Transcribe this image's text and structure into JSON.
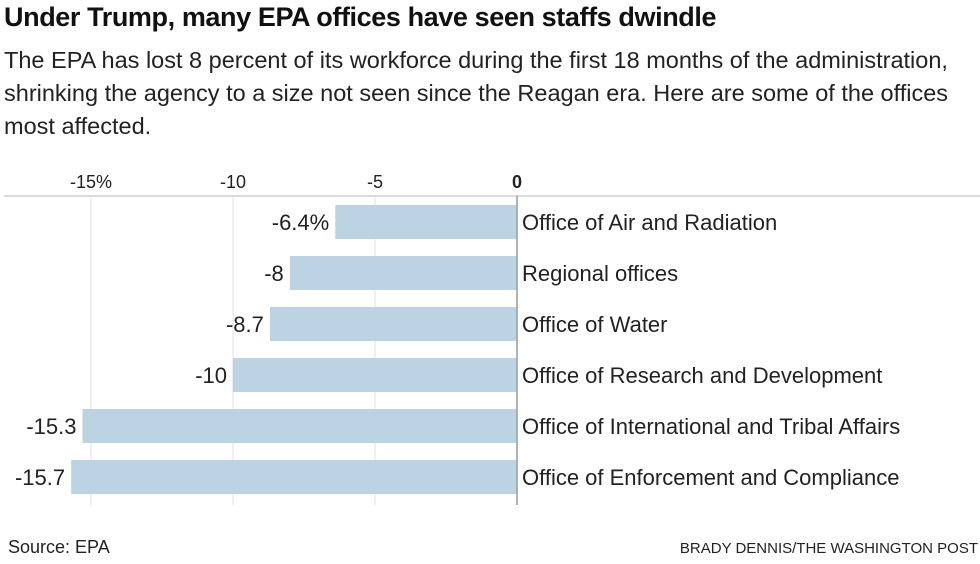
{
  "title": "Under Trump, many EPA offices have seen staffs dwindle",
  "subtitle": "The EPA has lost 8 percent of its workforce during the first 18 months of the administration, shrinking the agency to a size not seen since the Reagan era. Here are some of the offices most affected.",
  "source": "Source: EPA",
  "credit": "BRADY DENNIS/THE WASHINGTON POST",
  "chart_data": {
    "type": "bar",
    "orientation": "horizontal",
    "categories": [
      "Office of Air and Radiation",
      "Regional offices",
      "Office of Water",
      "Office of Research and Development",
      "Office of International and Tribal Affairs",
      "Office of Enforcement and Compliance"
    ],
    "values": [
      -6.4,
      -8,
      -8.7,
      -10,
      -15.3,
      -15.7
    ],
    "data_labels": [
      "-6.4%",
      "-8",
      "-8.7",
      "-10",
      "-15.3",
      "-15.7"
    ],
    "xlim": [
      -16.3,
      0
    ],
    "xticks": [
      -15,
      -10,
      -5,
      0
    ],
    "xtick_labels": [
      "-15%",
      "-10",
      "-5",
      "0"
    ],
    "axis_position": "top",
    "grid": true,
    "bar_color": "#bcd3e3"
  }
}
